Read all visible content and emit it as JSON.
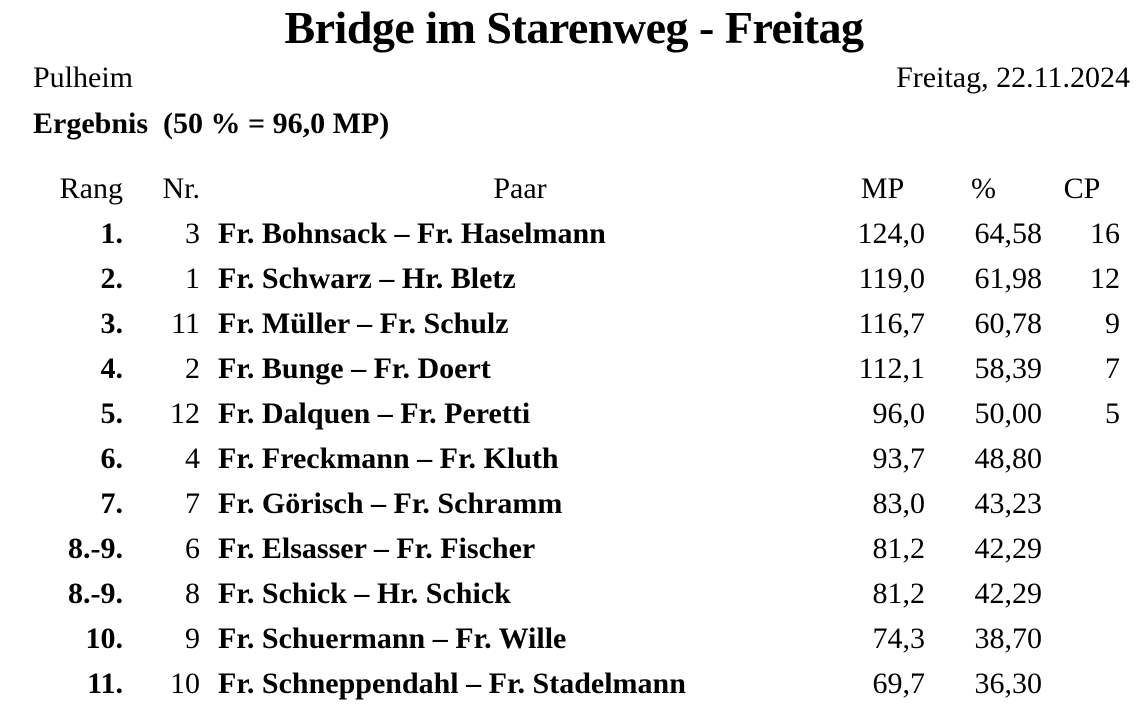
{
  "header": {
    "title": "Bridge im Starenweg - Freitag",
    "location": "Pulheim",
    "date": "Freitag, 22.11.2024",
    "result_line": "Ergebnis  (50 % = 96,0 MP)"
  },
  "table": {
    "columns": [
      "Rang",
      "Nr.",
      "Paar",
      "MP",
      "%",
      "CP"
    ],
    "rows": [
      {
        "rang": "1.",
        "nr": "3",
        "paar": "Fr. Bohnsack – Fr. Haselmann",
        "mp": "124,0",
        "pct": "64,58",
        "cp": "16"
      },
      {
        "rang": "2.",
        "nr": "1",
        "paar": "Fr. Schwarz – Hr. Bletz",
        "mp": "119,0",
        "pct": "61,98",
        "cp": "12"
      },
      {
        "rang": "3.",
        "nr": "11",
        "paar": "Fr. Müller – Fr. Schulz",
        "mp": "116,7",
        "pct": "60,78",
        "cp": "9"
      },
      {
        "rang": "4.",
        "nr": "2",
        "paar": "Fr. Bunge – Fr. Doert",
        "mp": "112,1",
        "pct": "58,39",
        "cp": "7"
      },
      {
        "rang": "5.",
        "nr": "12",
        "paar": "Fr. Dalquen – Fr. Peretti",
        "mp": "96,0",
        "pct": "50,00",
        "cp": "5"
      },
      {
        "rang": "6.",
        "nr": "4",
        "paar": "Fr. Freckmann – Fr. Kluth",
        "mp": "93,7",
        "pct": "48,80",
        "cp": ""
      },
      {
        "rang": "7.",
        "nr": "7",
        "paar": "Fr. Görisch – Fr. Schramm",
        "mp": "83,0",
        "pct": "43,23",
        "cp": ""
      },
      {
        "rang": "8.-9.",
        "nr": "6",
        "paar": "Fr. Elsasser – Fr. Fischer",
        "mp": "81,2",
        "pct": "42,29",
        "cp": ""
      },
      {
        "rang": "8.-9.",
        "nr": "8",
        "paar": "Fr. Schick – Hr. Schick",
        "mp": "81,2",
        "pct": "42,29",
        "cp": ""
      },
      {
        "rang": "10.",
        "nr": "9",
        "paar": "Fr. Schuermann – Fr. Wille",
        "mp": "74,3",
        "pct": "38,70",
        "cp": ""
      },
      {
        "rang": "11.",
        "nr": "10",
        "paar": "Fr. Schneppendahl – Fr. Stadelmann",
        "mp": "69,7",
        "pct": "36,30",
        "cp": ""
      }
    ]
  },
  "colors": {
    "text": "#000000",
    "background": "#ffffff"
  }
}
